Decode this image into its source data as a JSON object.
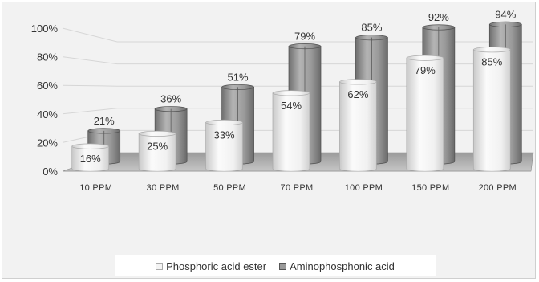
{
  "chart_data": {
    "type": "bar",
    "title": "",
    "xlabel": "",
    "ylabel": "",
    "ylim": [
      0,
      100
    ],
    "yticks": [
      "0%",
      "20%",
      "40%",
      "60%",
      "80%",
      "100%"
    ],
    "categories": [
      "10 PPM",
      "30 PPM",
      "50 PPM",
      "70 PPM",
      "100 PPM",
      "150 PPM",
      "200 PPM"
    ],
    "series": [
      {
        "name": "Phosphoric acid ester",
        "values": [
          16,
          25,
          33,
          54,
          62,
          79,
          85
        ],
        "labels": [
          "16%",
          "25%",
          "33%",
          "54%",
          "62%",
          "79%",
          "85%"
        ],
        "color": "#f0f0f0"
      },
      {
        "name": "Aminophosphonic acid",
        "values": [
          21,
          36,
          51,
          79,
          85,
          92,
          94
        ],
        "labels": [
          "21%",
          "36%",
          "51%",
          "79%",
          "85%",
          "92%",
          "94%"
        ],
        "color": "#8c8c8c"
      }
    ],
    "legend": "bottom",
    "grid": true
  }
}
